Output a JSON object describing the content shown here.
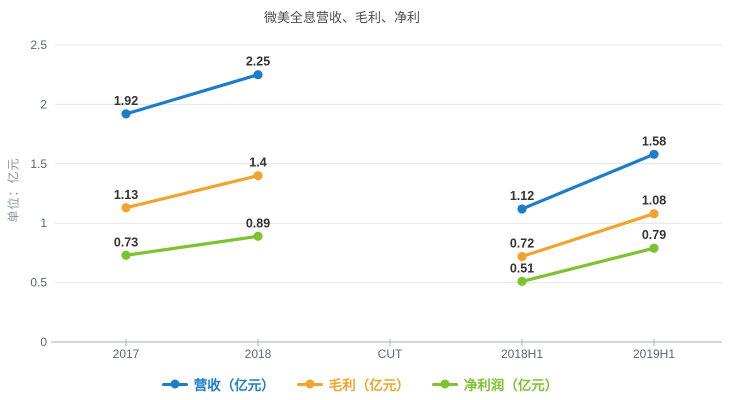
{
  "page": {
    "background": "#ffffff"
  },
  "chart_data": {
    "type": "line",
    "title": "微美全息营收、毛利、净利",
    "ylabel": "单位：亿元",
    "xlabel": "",
    "categories": [
      "2017",
      "2018",
      "CUT",
      "2018H1",
      "2019H1"
    ],
    "series": [
      {
        "name": "营收（亿元）",
        "color": "#1d7dca",
        "values": [
          1.92,
          2.25,
          null,
          1.12,
          1.58
        ]
      },
      {
        "name": "毛利（亿元）",
        "color": "#f1a42c",
        "values": [
          1.13,
          1.4,
          null,
          0.72,
          1.08
        ]
      },
      {
        "name": "净利润（亿元）",
        "color": "#7dc32f",
        "values": [
          0.73,
          0.89,
          null,
          0.51,
          0.79
        ]
      }
    ],
    "ylim": [
      0,
      2.5
    ],
    "yticks": [
      0,
      0.5,
      1,
      1.5,
      2,
      2.5
    ],
    "grid": true,
    "legend_position": "bottom",
    "marker": "circle",
    "data_labels": true
  },
  "colors": {
    "grid": "#e4e4e4",
    "axis": "#aab0b6",
    "title_text": "#4c4c4c",
    "tick_text": "#5c6670",
    "data_label_text": "#333333",
    "ylabel_text": "#8a949e"
  }
}
